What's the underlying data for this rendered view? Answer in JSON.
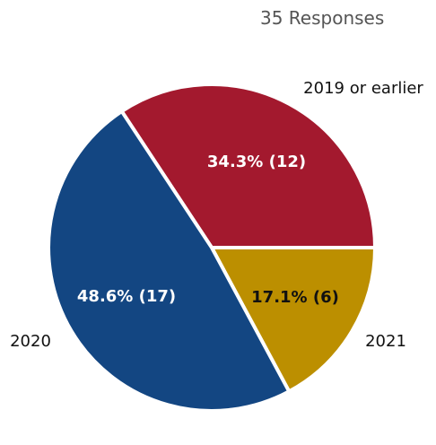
{
  "chart_data": {
    "type": "pie",
    "subtitle": "35 Responses",
    "total": 35,
    "slices": [
      {
        "label": "2019 or earlier",
        "value": 12,
        "percent": 34.3,
        "data_label": "34.3% (12)",
        "color": "#A3192E",
        "label_color": "#ffffff"
      },
      {
        "label": "2021",
        "value": 6,
        "percent": 17.1,
        "data_label": "17.1% (6)",
        "color": "#BC8F00",
        "label_color": "#111111"
      },
      {
        "label": "2020",
        "value": 17,
        "percent": 48.6,
        "data_label": "48.6% (17)",
        "color": "#134682",
        "label_color": "#ffffff"
      }
    ]
  }
}
